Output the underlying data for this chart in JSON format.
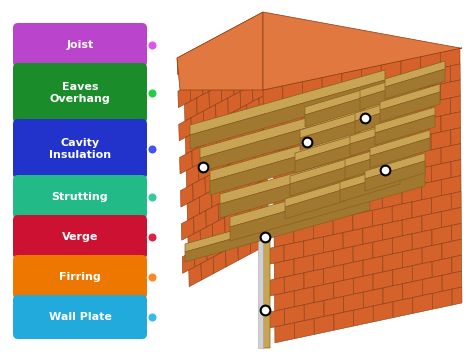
{
  "labels": [
    "Joist",
    "Eaves\nOverhang",
    "Cavity\nInsulation",
    "Strutting",
    "Verge",
    "Firring",
    "Wall Plate"
  ],
  "box_colors": [
    "#bb44cc",
    "#1a8c2a",
    "#2233cc",
    "#22bb88",
    "#cc1133",
    "#ee7700",
    "#22aadd"
  ],
  "dot_colors": [
    "#dd55ee",
    "#22cc44",
    "#4455ee",
    "#33cc99",
    "#dd2244",
    "#ff8822",
    "#33bbee"
  ],
  "background_color": "#ffffff",
  "brick_face_color": "#d4622a",
  "brick_top_color": "#e07840",
  "brick_side_color": "#b84a1a",
  "brick_mortar": "#b85520",
  "brick_edge": "#8a3a10",
  "wood_top": "#c8a455",
  "wood_face": "#a07830",
  "wood_side": "#8a6020",
  "wood_light": "#d8b870"
}
